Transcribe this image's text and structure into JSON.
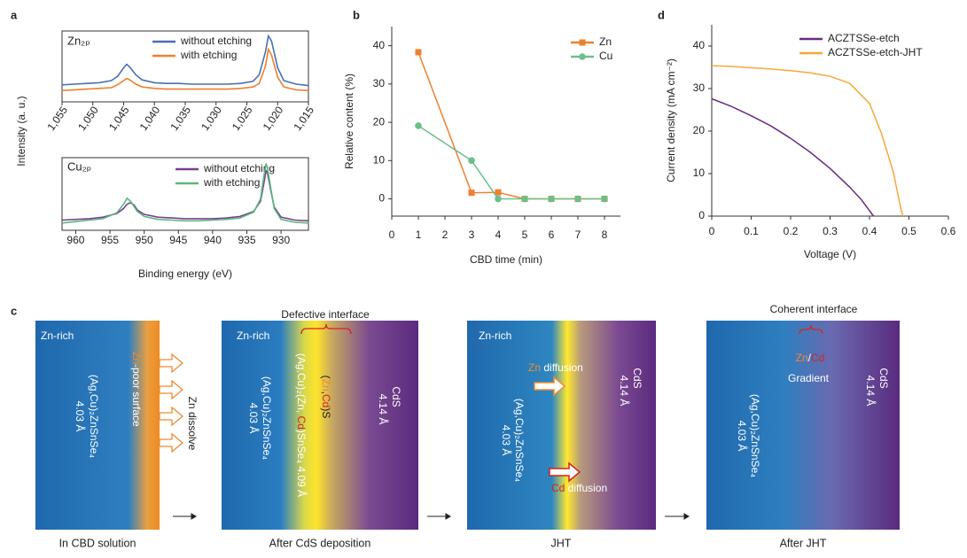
{
  "chart_data": [
    {
      "type": "line",
      "panel": "a",
      "label": "Zn₂ₚ",
      "ylabel": "Intensity (a. u.)",
      "x": [
        1055,
        1053,
        1051,
        1049,
        1047,
        1046,
        1045,
        1044.5,
        1044,
        1043,
        1042,
        1040,
        1038,
        1036,
        1034,
        1032,
        1030,
        1028,
        1026,
        1024,
        1023,
        1022,
        1021.5,
        1021,
        1020,
        1019,
        1017,
        1015
      ],
      "xlim": [
        1055,
        1015
      ],
      "ylim": [
        0,
        10
      ],
      "xticks": [
        {
          "value": 1055,
          "label": "1,055"
        },
        {
          "value": 1050,
          "label": "1,050"
        },
        {
          "value": 1045,
          "label": "1,045"
        },
        {
          "value": 1040,
          "label": "1,040"
        },
        {
          "value": 1035,
          "label": "1,035"
        },
        {
          "value": 1030,
          "label": "1,030"
        },
        {
          "value": 1025,
          "label": "1,025"
        },
        {
          "value": 1020,
          "label": "1,020"
        },
        {
          "value": 1015,
          "label": "1,015"
        }
      ],
      "series": [
        {
          "name": "without etching",
          "color": "#4a6fb5",
          "values": [
            2.4,
            2.5,
            2.6,
            2.7,
            3.0,
            3.6,
            4.8,
            5.3,
            4.9,
            3.8,
            3.1,
            2.7,
            2.6,
            2.6,
            2.5,
            2.5,
            2.5,
            2.5,
            2.6,
            2.9,
            3.8,
            7.0,
            9.3,
            8.6,
            4.8,
            3.0,
            2.5,
            2.3
          ]
        },
        {
          "name": "with etching",
          "color": "#f07f2e",
          "values": [
            1.6,
            1.7,
            1.8,
            1.9,
            2.0,
            2.4,
            3.0,
            3.3,
            3.1,
            2.5,
            2.1,
            1.9,
            1.8,
            1.8,
            1.8,
            1.8,
            1.8,
            1.8,
            1.9,
            2.1,
            2.6,
            5.0,
            7.4,
            6.6,
            3.5,
            2.1,
            1.7,
            1.6
          ]
        }
      ]
    },
    {
      "type": "line",
      "label": "Cu₂ₚ",
      "xlabel": "Binding energy (eV)",
      "x": [
        962,
        960,
        958,
        956,
        954,
        953,
        952.5,
        952,
        951.5,
        951,
        950,
        948,
        946,
        944,
        942,
        940,
        938,
        936,
        934,
        933,
        932.5,
        932.2,
        932,
        931.5,
        931,
        930,
        928,
        926
      ],
      "xlim": [
        962,
        926
      ],
      "ylim": [
        0,
        10
      ],
      "xticks": [
        960,
        955,
        950,
        945,
        940,
        935,
        930
      ],
      "series": [
        {
          "name": "without etching",
          "color": "#7b3f8f",
          "values": [
            1.4,
            1.5,
            1.6,
            1.8,
            2.3,
            3.0,
            3.6,
            3.8,
            3.5,
            2.8,
            2.2,
            1.8,
            1.7,
            1.6,
            1.6,
            1.6,
            1.7,
            1.9,
            2.6,
            4.0,
            6.5,
            8.2,
            7.9,
            5.5,
            3.2,
            1.8,
            1.4,
            1.3
          ]
        },
        {
          "name": "with etching",
          "color": "#5ab77e",
          "values": [
            1.0,
            1.2,
            1.4,
            1.6,
            2.4,
            3.6,
            4.4,
            4.0,
            3.3,
            2.6,
            1.9,
            1.5,
            1.4,
            1.3,
            1.3,
            1.4,
            1.5,
            1.7,
            2.5,
            4.3,
            7.5,
            9.2,
            8.6,
            5.8,
            3.0,
            1.5,
            1.1,
            1.0
          ]
        }
      ]
    },
    {
      "type": "line",
      "panel": "b",
      "xlabel": "CBD time (min)",
      "ylabel": "Relative content (%)",
      "x": [
        1,
        3,
        4,
        5,
        6,
        7,
        8
      ],
      "xlim": [
        0,
        8.6
      ],
      "ylim": [
        -4.5,
        45
      ],
      "xticks": [
        0,
        1,
        2,
        3,
        4,
        5,
        6,
        7,
        8
      ],
      "yticks": [
        0,
        10,
        20,
        30,
        40
      ],
      "series": [
        {
          "name": "Zn",
          "color": "#f07f2e",
          "marker": "square",
          "values": [
            38.3,
            1.6,
            1.7,
            0,
            0,
            0,
            0
          ]
        },
        {
          "name": "Cu",
          "color": "#6bbf8a",
          "marker": "circle",
          "values": [
            19.1,
            10,
            0,
            0,
            0,
            0,
            0
          ]
        }
      ]
    },
    {
      "type": "line",
      "panel": "d",
      "xlabel": "Voltage (V)",
      "ylabel": "Current density (mA cm⁻²)",
      "xlim": [
        0,
        0.6
      ],
      "ylim": [
        0,
        45
      ],
      "xticks": [
        0,
        0.1,
        0.2,
        0.3,
        0.4,
        0.5,
        0.6
      ],
      "yticks": [
        0,
        10,
        20,
        30,
        40
      ],
      "series": [
        {
          "name": "ACZTSSe-etch",
          "color": "#6a2b82",
          "x": [
            0,
            0.05,
            0.1,
            0.15,
            0.2,
            0.25,
            0.3,
            0.35,
            0.38,
            0.41
          ],
          "values": [
            27.6,
            25.8,
            23.6,
            21.2,
            18.3,
            15.0,
            11.2,
            6.8,
            3.8,
            0
          ]
        },
        {
          "name": "ACZTSSe-etch-JHT",
          "color": "#f5a93a",
          "x": [
            0,
            0.05,
            0.1,
            0.15,
            0.2,
            0.25,
            0.3,
            0.35,
            0.4,
            0.43,
            0.46,
            0.48,
            0.485
          ],
          "values": [
            35.4,
            35.2,
            34.9,
            34.6,
            34.2,
            33.7,
            32.9,
            31.2,
            26.5,
            19.5,
            10.5,
            1.5,
            0
          ]
        }
      ]
    }
  ],
  "diagram": {
    "panel": "c",
    "stages": [
      {
        "caption": "In CBD solution",
        "region": "Zn-rich",
        "absorber": "(Ag,Cu)₂ZnSnSe₄",
        "absorber_lattice": "4.03 Å",
        "surface": [
          "Zn",
          "-poor surface"
        ],
        "process": "Zn dissolve"
      },
      {
        "caption": "After CdS deposition",
        "interface": "Defective interface",
        "region": "Zn-rich",
        "absorber": "(Ag,Cu)₂ZnSnSe₄",
        "absorber_lattice": "4.03 Å",
        "mixed": [
          "(Ag,Cu)₂(Zn, ",
          "Cd",
          ")SnSe₄ 4.09 Å"
        ],
        "buffer_mix": [
          "(",
          "Zn",
          ",",
          "Cd",
          ")S"
        ],
        "buffer": "CdS",
        "buffer_lattice": "4.14 Å"
      },
      {
        "caption": "JHT",
        "region": "Zn-rich",
        "zn_diffusion": [
          "Zn",
          " diffusion"
        ],
        "cd_diffusion": [
          "Cd",
          " diffusion"
        ],
        "absorber": "(Ag,Cu)₂ZnSnSe₄",
        "absorber_lattice": "4.03 Å",
        "buffer": "CdS",
        "buffer_lattice": "4.14 Å"
      },
      {
        "caption": "After JHT",
        "interface": "Coherent interface",
        "gradient": [
          "Zn",
          "/",
          "Cd"
        ],
        "gradient_label": "Gradient",
        "absorber": "(Ag,Cu)₂ZnSnSe₄",
        "absorber_lattice": "4.03 Å",
        "buffer": "CdS",
        "buffer_lattice": "4.14 Å"
      }
    ]
  }
}
